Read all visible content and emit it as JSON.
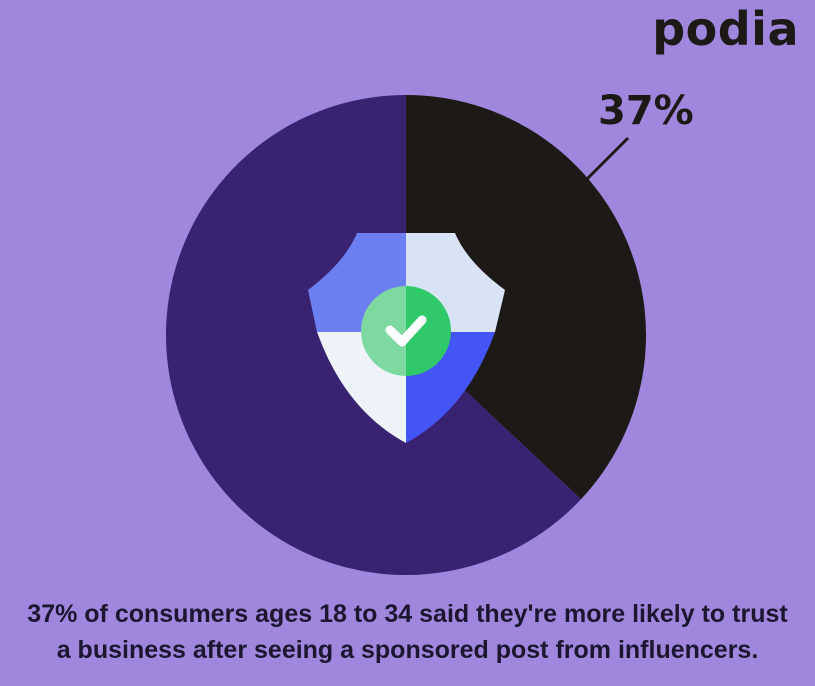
{
  "brand": {
    "logo_text": "podia"
  },
  "chart_data": {
    "type": "pie",
    "slices": [
      {
        "label": "37%",
        "value": 37,
        "color": "#1c1917"
      },
      {
        "value": 63,
        "color": "#382271"
      }
    ]
  },
  "caption": {
    "line1": "37% of consumers ages 18 to 34 said they're more likely to trust",
    "line2": "a business after seeing a sponsored post from influencers."
  },
  "colors": {
    "background": "#a087dd",
    "shield_left_top": "#6b7ff0",
    "shield_right_top": "#d9e3f6",
    "shield_left_bottom": "#eef3fa",
    "shield_right_bottom": "#4356f5",
    "check_left": "#7ed9a0",
    "check_right": "#2fc96a"
  },
  "icon": "shield-check-icon"
}
